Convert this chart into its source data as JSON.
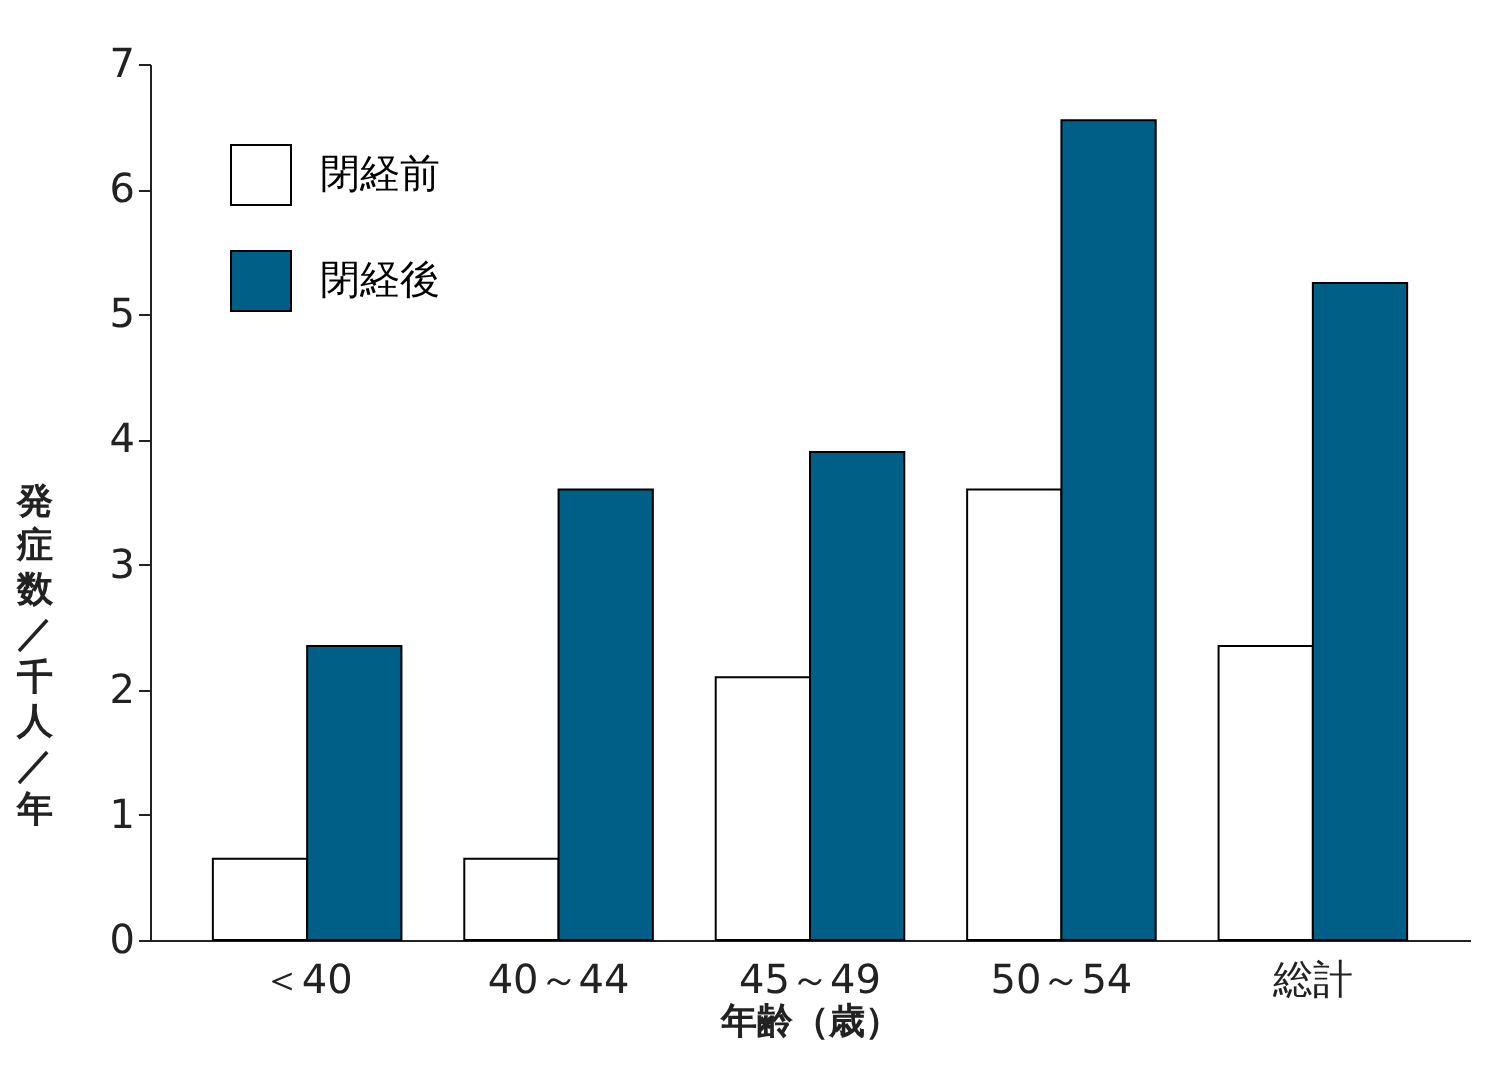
{
  "chart_data": {
    "type": "bar",
    "xlabel": "年齢（歳）",
    "ylabel": "発症数／千人／年",
    "categories": [
      "＜40",
      "40～44",
      "45～49",
      "50～54",
      "総計"
    ],
    "series": [
      {
        "name": "閉経前",
        "color": "#ffffff",
        "values": [
          0.65,
          0.65,
          2.1,
          3.6,
          2.35
        ]
      },
      {
        "name": "閉経後",
        "color": "#005f87",
        "values": [
          2.35,
          3.6,
          3.9,
          6.55,
          5.25
        ]
      }
    ],
    "ylim": [
      0,
      7
    ],
    "yticks": [
      0,
      1,
      2,
      3,
      4,
      5,
      6,
      7
    ],
    "grid": false,
    "legend": "top left"
  }
}
